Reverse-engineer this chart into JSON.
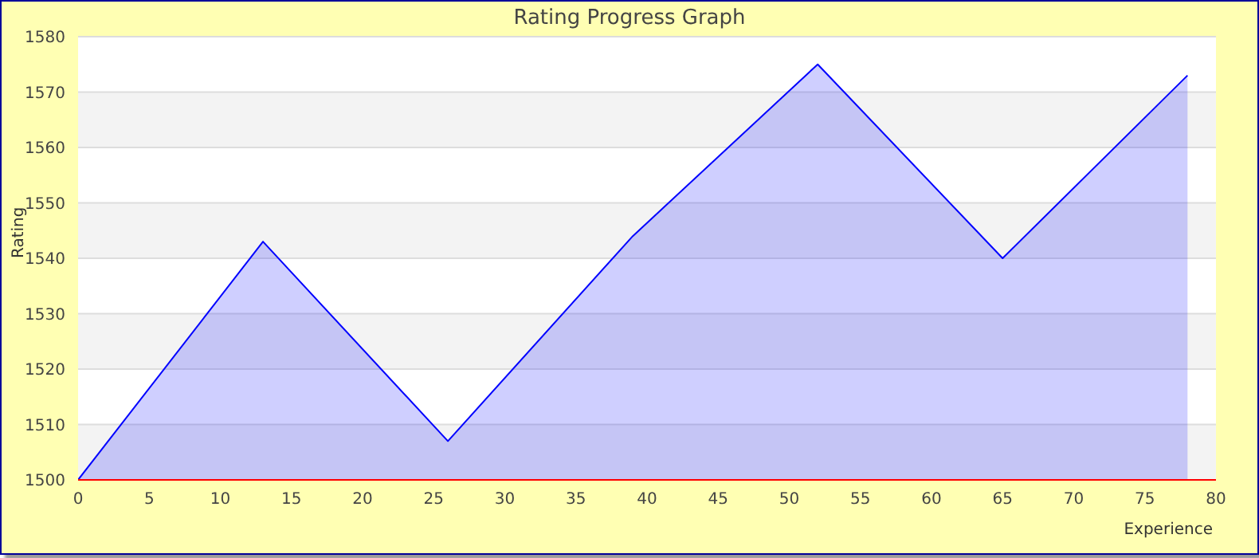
{
  "chart_data": {
    "type": "area",
    "title": "Rating Progress Graph",
    "xlabel": "Experience",
    "ylabel": "Rating",
    "x": [
      0,
      13,
      26,
      39,
      52,
      65,
      78
    ],
    "series": [
      {
        "color": "#0000ff",
        "values": [
          1500,
          1543,
          1507,
          1544,
          1575,
          1540,
          1573
        ]
      }
    ],
    "xlim": [
      0,
      80
    ],
    "xticks": [
      0,
      5,
      10,
      15,
      20,
      25,
      30,
      35,
      40,
      45,
      50,
      55,
      60,
      65,
      70,
      75,
      80
    ],
    "ylim": [
      1500,
      1580
    ],
    "yticks": [
      1500,
      1510,
      1520,
      1530,
      1540,
      1550,
      1560,
      1570,
      1580
    ],
    "grid": "y",
    "legend": false,
    "marker": "none",
    "line_style": "solid"
  }
}
